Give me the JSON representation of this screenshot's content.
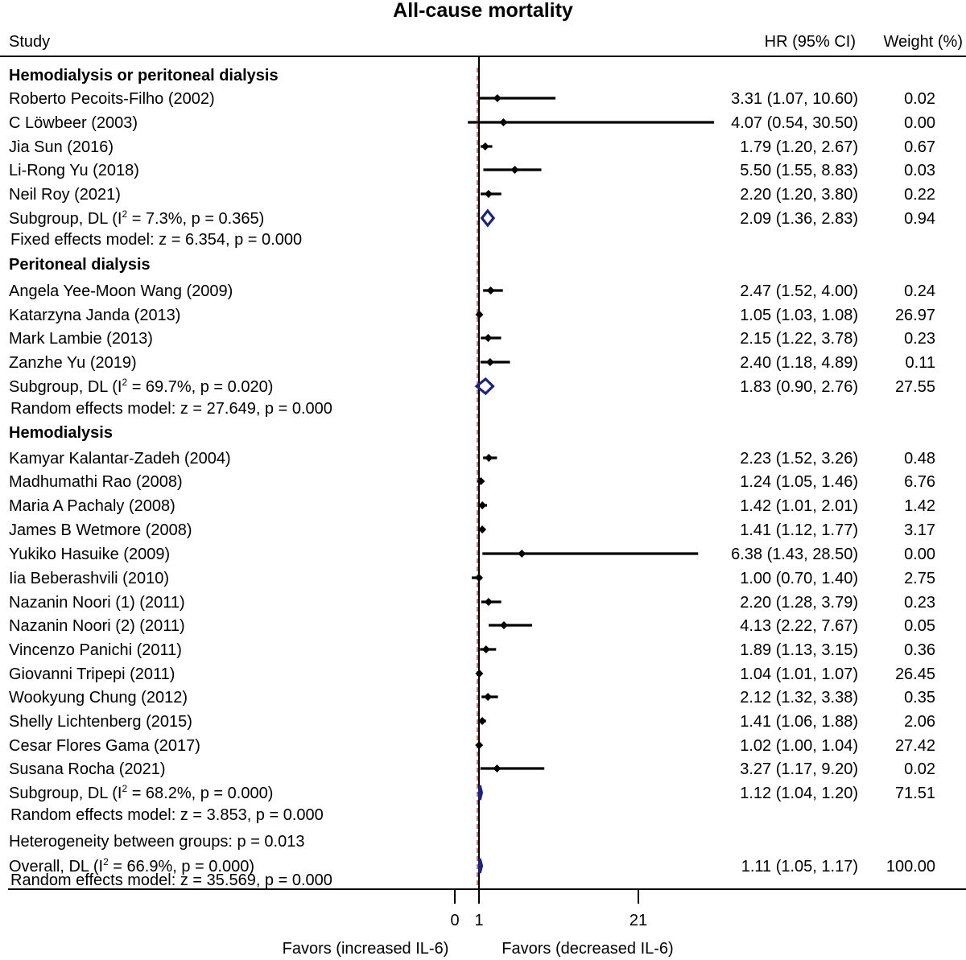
{
  "chart_data": {
    "type": "forest",
    "title": "All-cause mortality",
    "col_study": "Study",
    "col_hr": "HR (95% CI)",
    "col_weight": "Weight (%)",
    "xticks": [
      0,
      1,
      21
    ],
    "xlim_display": [
      0,
      21
    ],
    "reference_line": 1,
    "favors_left": "Favors (increased IL-6)",
    "favors_right": "Favors (decreased IL-6)",
    "groups": [
      {
        "name": "Hemodialysis or peritoneal dialysis",
        "studies": [
          {
            "label": "Roberto Pecoits-Filho (2002)",
            "hr": 3.31,
            "lo": 1.07,
            "hi": 10.6,
            "ci_text": "3.31 (1.07, 10.60)",
            "weight": "0.02"
          },
          {
            "label": "C Löwbeer (2003)",
            "hr": 4.07,
            "lo": 0.54,
            "hi": 30.5,
            "ci_text": "4.07 (0.54, 30.50)",
            "weight": "0.00"
          },
          {
            "label": "Jia Sun (2016)",
            "hr": 1.79,
            "lo": 1.2,
            "hi": 2.67,
            "ci_text": "1.79 (1.20, 2.67)",
            "weight": "0.67"
          },
          {
            "label": "Li-Rong Yu (2018)",
            "hr": 5.5,
            "lo": 1.55,
            "hi": 8.83,
            "ci_text": "5.50 (1.55, 8.83)",
            "weight": "0.03"
          },
          {
            "label": "Neil Roy (2021)",
            "hr": 2.2,
            "lo": 1.2,
            "hi": 3.8,
            "ci_text": "2.20 (1.20, 3.80)",
            "weight": "0.22"
          }
        ],
        "subgroup": {
          "label": "Subgroup, DL (I",
          "i2": "2",
          "label_rest": " = 7.3%, p = 0.365)",
          "hr": 2.09,
          "lo": 1.36,
          "hi": 2.83,
          "ci_text": "2.09 (1.36, 2.83)",
          "weight": "0.94"
        },
        "model_text": "Fixed effects model: z = 6.354, p = 0.000"
      },
      {
        "name": "Peritoneal dialysis",
        "studies": [
          {
            "label": "Angela Yee-Moon Wang (2009)",
            "hr": 2.47,
            "lo": 1.52,
            "hi": 4.0,
            "ci_text": "2.47 (1.52, 4.00)",
            "weight": "0.24"
          },
          {
            "label": "Katarzyna Janda (2013)",
            "hr": 1.05,
            "lo": 1.03,
            "hi": 1.08,
            "ci_text": "1.05 (1.03, 1.08)",
            "weight": "26.97"
          },
          {
            "label": "Mark Lambie (2013)",
            "hr": 2.15,
            "lo": 1.22,
            "hi": 3.78,
            "ci_text": "2.15 (1.22, 3.78)",
            "weight": "0.23"
          },
          {
            "label": "Zanzhe Yu (2019)",
            "hr": 2.4,
            "lo": 1.18,
            "hi": 4.89,
            "ci_text": "2.40 (1.18, 4.89)",
            "weight": "0.11"
          }
        ],
        "subgroup": {
          "label": "Subgroup, DL (I",
          "i2": "2",
          "label_rest": " = 69.7%, p = 0.020)",
          "hr": 1.83,
          "lo": 0.9,
          "hi": 2.76,
          "ci_text": "1.83 (0.90, 2.76)",
          "weight": "27.55"
        },
        "model_text": "Random effects model: z = 27.649, p = 0.000"
      },
      {
        "name": "Hemodialysis",
        "studies": [
          {
            "label": "Kamyar Kalantar-Zadeh (2004)",
            "hr": 2.23,
            "lo": 1.52,
            "hi": 3.26,
            "ci_text": "2.23 (1.52, 3.26)",
            "weight": "0.48"
          },
          {
            "label": "Madhumathi Rao (2008)",
            "hr": 1.24,
            "lo": 1.05,
            "hi": 1.46,
            "ci_text": "1.24 (1.05, 1.46)",
            "weight": "6.76"
          },
          {
            "label": "Maria A Pachaly (2008)",
            "hr": 1.42,
            "lo": 1.01,
            "hi": 2.01,
            "ci_text": "1.42 (1.01, 2.01)",
            "weight": "1.42"
          },
          {
            "label": "James B Wetmore (2008)",
            "hr": 1.41,
            "lo": 1.12,
            "hi": 1.77,
            "ci_text": "1.41 (1.12, 1.77)",
            "weight": "3.17"
          },
          {
            "label": "Yukiko Hasuike (2009)",
            "hr": 6.38,
            "lo": 1.43,
            "hi": 28.5,
            "ci_text": "6.38 (1.43, 28.50)",
            "weight": "0.00"
          },
          {
            "label": "Iia Beberashvili (2010)",
            "hr": 1.0,
            "lo": 0.7,
            "hi": 1.4,
            "ci_text": "1.00 (0.70, 1.40)",
            "weight": "2.75"
          },
          {
            "label": "Nazanin Noori (1) (2011)",
            "hr": 2.2,
            "lo": 1.28,
            "hi": 3.79,
            "ci_text": "2.20 (1.28, 3.79)",
            "weight": "0.23"
          },
          {
            "label": "Nazanin Noori (2) (2011)",
            "hr": 4.13,
            "lo": 2.22,
            "hi": 7.67,
            "ci_text": "4.13 (2.22, 7.67)",
            "weight": "0.05"
          },
          {
            "label": "Vincenzo Panichi (2011)",
            "hr": 1.89,
            "lo": 1.13,
            "hi": 3.15,
            "ci_text": "1.89 (1.13, 3.15)",
            "weight": "0.36"
          },
          {
            "label": "Giovanni Tripepi (2011)",
            "hr": 1.04,
            "lo": 1.01,
            "hi": 1.07,
            "ci_text": "1.04 (1.01, 1.07)",
            "weight": "26.45"
          },
          {
            "label": "Wookyung Chung (2012)",
            "hr": 2.12,
            "lo": 1.32,
            "hi": 3.38,
            "ci_text": "2.12 (1.32, 3.38)",
            "weight": "0.35"
          },
          {
            "label": "Shelly Lichtenberg (2015)",
            "hr": 1.41,
            "lo": 1.06,
            "hi": 1.88,
            "ci_text": "1.41 (1.06, 1.88)",
            "weight": "2.06"
          },
          {
            "label": "Cesar Flores Gama (2017)",
            "hr": 1.02,
            "lo": 1.0,
            "hi": 1.04,
            "ci_text": "1.02 (1.00, 1.04)",
            "weight": "27.42"
          },
          {
            "label": "Susana Rocha (2021)",
            "hr": 3.27,
            "lo": 1.17,
            "hi": 9.2,
            "ci_text": "3.27 (1.17, 9.20)",
            "weight": "0.02"
          }
        ],
        "subgroup": {
          "label": "Subgroup, DL (I",
          "i2": "2",
          "label_rest": " = 68.2%, p = 0.000)",
          "hr": 1.12,
          "lo": 1.04,
          "hi": 1.2,
          "ci_text": "1.12 (1.04, 1.20)",
          "weight": "71.51"
        },
        "model_text": "Random effects model: z = 3.853, p = 0.000"
      }
    ],
    "heterogeneity_text": "Heterogeneity between groups: p = 0.013",
    "overall": {
      "label": "Overall, DL (I",
      "i2": "2",
      "label_rest": " = 66.9%, p = 0.000)",
      "hr": 1.11,
      "lo": 1.05,
      "hi": 1.17,
      "ci_text": "1.11 (1.05, 1.17)",
      "weight": "100.00"
    },
    "overall_model_text": "Random effects model: z = 35.569, p = 0.000",
    "colors": {
      "point": "#000000",
      "diamond": "#1a237e",
      "ref_line": "#000000",
      "null_line": "#8b1a1a"
    }
  }
}
